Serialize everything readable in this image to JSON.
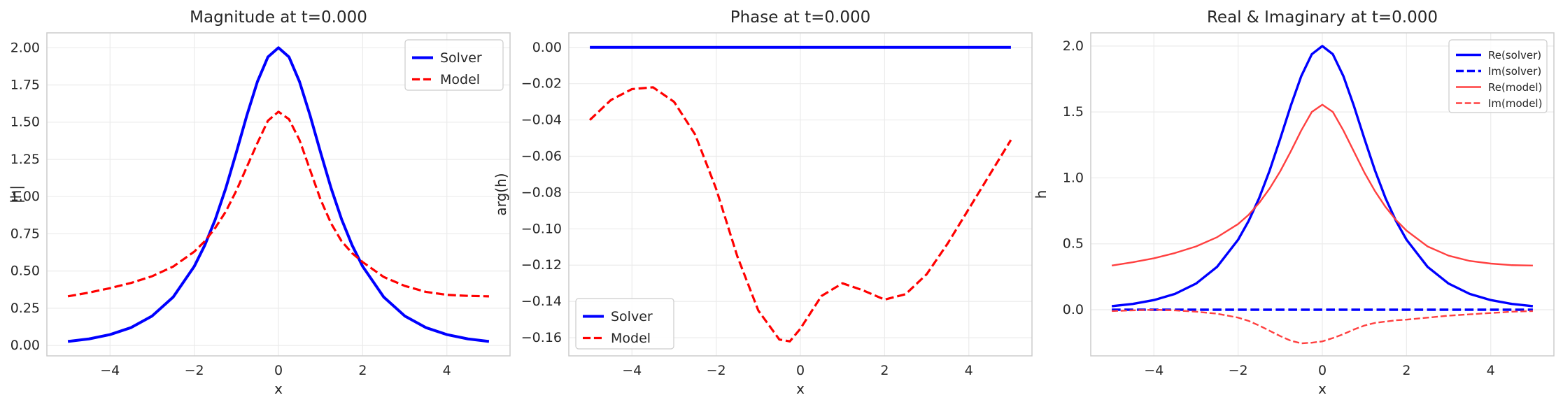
{
  "chart_data": [
    {
      "type": "line",
      "title": "Magnitude at t=0.000",
      "xlabel": "x",
      "ylabel": "|h|",
      "xlim": [
        -5.5,
        5.5
      ],
      "ylim": [
        -0.07,
        2.1
      ],
      "xticks": [
        -4,
        -2,
        0,
        2,
        4
      ],
      "xtick_labels": [
        "−4",
        "−2",
        "0",
        "2",
        "4"
      ],
      "yticks": [
        0.0,
        0.25,
        0.5,
        0.75,
        1.0,
        1.25,
        1.5,
        1.75,
        2.0
      ],
      "ytick_labels": [
        "0.00",
        "0.25",
        "0.50",
        "0.75",
        "1.00",
        "1.25",
        "1.50",
        "1.75",
        "2.00"
      ],
      "grid": true,
      "legend": "top-right",
      "x": [
        -5,
        -4.5,
        -4,
        -3.5,
        -3,
        -2.5,
        -2,
        -1.75,
        -1.5,
        -1.25,
        -1,
        -0.75,
        -0.5,
        -0.25,
        0,
        0.25,
        0.5,
        0.75,
        1,
        1.25,
        1.5,
        1.75,
        2,
        2.5,
        3,
        3.5,
        4,
        4.5,
        5
      ],
      "series": [
        {
          "name": "Solver",
          "color": "#0000ff",
          "style": "solid",
          "width": 4,
          "values": [
            0.027,
            0.044,
            0.073,
            0.12,
            0.198,
            0.325,
            0.531,
            0.673,
            0.847,
            1.057,
            1.297,
            1.546,
            1.772,
            1.938,
            2.0,
            1.938,
            1.772,
            1.546,
            1.297,
            1.057,
            0.847,
            0.673,
            0.531,
            0.325,
            0.198,
            0.12,
            0.073,
            0.044,
            0.027
          ]
        },
        {
          "name": "Model",
          "color": "#ff0000",
          "style": "dashed",
          "width": 3.2,
          "values": [
            0.33,
            0.355,
            0.385,
            0.42,
            0.465,
            0.53,
            0.63,
            0.7,
            0.79,
            0.9,
            1.04,
            1.2,
            1.36,
            1.51,
            1.57,
            1.52,
            1.38,
            1.18,
            0.98,
            0.82,
            0.7,
            0.62,
            0.56,
            0.46,
            0.4,
            0.36,
            0.34,
            0.333,
            0.33
          ]
        }
      ]
    },
    {
      "type": "line",
      "title": "Phase at t=0.000",
      "xlabel": "x",
      "ylabel": "arg(h)",
      "xlim": [
        -5.5,
        5.5
      ],
      "ylim": [
        -0.17,
        0.008
      ],
      "xticks": [
        -4,
        -2,
        0,
        2,
        4
      ],
      "xtick_labels": [
        "−4",
        "−2",
        "0",
        "2",
        "4"
      ],
      "yticks": [
        0.0,
        -0.02,
        -0.04,
        -0.06,
        -0.08,
        -0.1,
        -0.12,
        -0.14,
        -0.16
      ],
      "ytick_labels": [
        "0.00",
        "−0.02",
        "−0.04",
        "−0.06",
        "−0.08",
        "−0.10",
        "−0.12",
        "−0.14",
        "−0.16"
      ],
      "grid": true,
      "legend": "bottom-left",
      "x": [
        -5,
        -4.5,
        -4,
        -3.5,
        -3,
        -2.5,
        -2,
        -1.5,
        -1,
        -0.5,
        -0.25,
        0,
        0.5,
        1,
        1.5,
        2,
        2.5,
        3,
        3.5,
        4,
        4.5,
        5
      ],
      "series": [
        {
          "name": "Solver",
          "color": "#0000ff",
          "style": "solid",
          "width": 4,
          "values": [
            0,
            0,
            0,
            0,
            0,
            0,
            0,
            0,
            0,
            0,
            0,
            0,
            0,
            0,
            0,
            0,
            0,
            0,
            0,
            0,
            0,
            0
          ]
        },
        {
          "name": "Model",
          "color": "#ff0000",
          "style": "dashed",
          "width": 3.2,
          "values": [
            -0.04,
            -0.029,
            -0.023,
            -0.022,
            -0.03,
            -0.048,
            -0.078,
            -0.115,
            -0.145,
            -0.161,
            -0.162,
            -0.155,
            -0.137,
            -0.13,
            -0.134,
            -0.139,
            -0.136,
            -0.125,
            -0.108,
            -0.089,
            -0.07,
            -0.051
          ]
        }
      ]
    },
    {
      "type": "line",
      "title": "Real & Imaginary at t=0.000",
      "xlabel": "x",
      "ylabel": "h",
      "xlim": [
        -5.5,
        5.5
      ],
      "ylim": [
        -0.35,
        2.1
      ],
      "xticks": [
        -4,
        -2,
        0,
        2,
        4
      ],
      "xtick_labels": [
        "−4",
        "−2",
        "0",
        "2",
        "4"
      ],
      "yticks": [
        0.0,
        0.5,
        1.0,
        1.5,
        2.0
      ],
      "ytick_labels": [
        "0.0",
        "0.5",
        "1.0",
        "1.5",
        "2.0"
      ],
      "grid": true,
      "legend": "top-right",
      "x": [
        -5,
        -4.5,
        -4,
        -3.5,
        -3,
        -2.5,
        -2,
        -1.75,
        -1.5,
        -1.25,
        -1,
        -0.75,
        -0.5,
        -0.25,
        0,
        0.25,
        0.5,
        0.75,
        1,
        1.25,
        1.5,
        1.75,
        2,
        2.5,
        3,
        3.5,
        4,
        4.5,
        5
      ],
      "series": [
        {
          "name": "Re(solver)",
          "color": "#0000ff",
          "style": "solid",
          "width": 3.4,
          "values": [
            0.027,
            0.044,
            0.073,
            0.12,
            0.198,
            0.325,
            0.531,
            0.673,
            0.847,
            1.057,
            1.297,
            1.546,
            1.772,
            1.938,
            2.0,
            1.938,
            1.772,
            1.546,
            1.297,
            1.057,
            0.847,
            0.673,
            0.531,
            0.325,
            0.198,
            0.12,
            0.073,
            0.044,
            0.027
          ]
        },
        {
          "name": "Im(solver)",
          "color": "#0000ff",
          "style": "dashed",
          "width": 3.4,
          "values": [
            0,
            0,
            0,
            0,
            0,
            0,
            0,
            0,
            0,
            0,
            0,
            0,
            0,
            0,
            0,
            0,
            0,
            0,
            0,
            0,
            0,
            0,
            0,
            0,
            0,
            0,
            0,
            0,
            0
          ]
        },
        {
          "name": "Re(model)",
          "color": "#ff4040",
          "style": "solid",
          "width": 2.4,
          "values": [
            0.335,
            0.36,
            0.39,
            0.43,
            0.48,
            0.55,
            0.65,
            0.72,
            0.81,
            0.92,
            1.05,
            1.2,
            1.36,
            1.5,
            1.555,
            1.5,
            1.36,
            1.2,
            1.04,
            0.9,
            0.78,
            0.68,
            0.6,
            0.48,
            0.41,
            0.37,
            0.35,
            0.338,
            0.335
          ]
        },
        {
          "name": "Im(model)",
          "color": "#ff4040",
          "style": "dashed",
          "width": 2.4,
          "values": [
            -0.01,
            -0.005,
            0.0,
            -0.005,
            -0.015,
            -0.03,
            -0.06,
            -0.085,
            -0.12,
            -0.16,
            -0.2,
            -0.235,
            -0.255,
            -0.25,
            -0.24,
            -0.215,
            -0.185,
            -0.15,
            -0.12,
            -0.1,
            -0.09,
            -0.08,
            -0.075,
            -0.06,
            -0.045,
            -0.035,
            -0.025,
            -0.015,
            -0.01
          ]
        }
      ]
    }
  ]
}
